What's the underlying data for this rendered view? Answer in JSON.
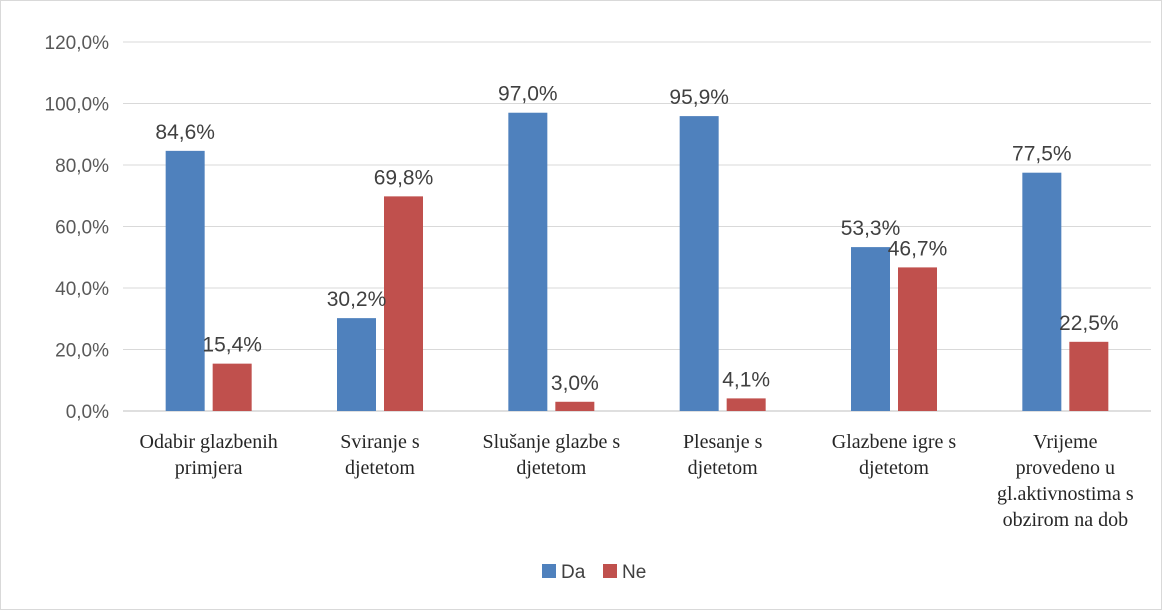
{
  "chart_data": {
    "type": "bar",
    "categories": [
      [
        "Odabir glazbenih",
        "primjera"
      ],
      [
        "Sviranje s",
        "djetetom"
      ],
      [
        "Slušanje glazbe s",
        "djetetom"
      ],
      [
        "Plesanje s",
        "djetetom"
      ],
      [
        "Glazbene igre s",
        "djetetom"
      ],
      [
        "Vrijeme",
        "provedeno u",
        "gl.aktivnostima s",
        "obzirom na dob"
      ]
    ],
    "series": [
      {
        "name": "Da",
        "color": "#4f81bd",
        "values": [
          84.6,
          30.2,
          97.0,
          95.9,
          53.3,
          77.5
        ],
        "labels": [
          "84,6%",
          "30,2%",
          "97,0%",
          "95,9%",
          "53,3%",
          "77,5%"
        ]
      },
      {
        "name": "Ne",
        "color": "#c0504d",
        "values": [
          15.4,
          69.8,
          3.0,
          4.1,
          46.7,
          22.5
        ],
        "labels": [
          "15,4%",
          "69,8%",
          "3,0%",
          "4,1%",
          "46,7%",
          "22,5%"
        ]
      }
    ],
    "ylim": [
      0,
      120
    ],
    "yticks": [
      "0,0%",
      "20,0%",
      "40,0%",
      "60,0%",
      "80,0%",
      "100,0%",
      "120,0%"
    ],
    "grid": true,
    "legend_position": "bottom"
  }
}
